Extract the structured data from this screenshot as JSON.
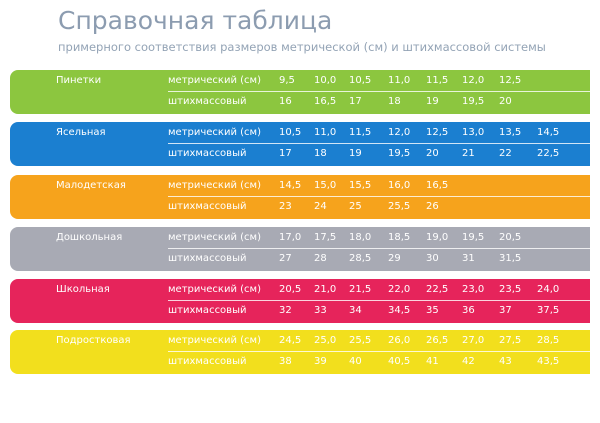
{
  "header": {
    "title": "Справочная таблица",
    "subtitle": "примерного соответствия размеров метрической (см) и штихмассовой системы"
  },
  "table": {
    "groups": [
      {
        "name": "Пинетки",
        "rows": [
          {
            "label": "метрический (см)",
            "values": [
              "9,5",
              "10,0",
              "10,5",
              "11,0",
              "11,5",
              "12,0",
              "12,5"
            ]
          },
          {
            "label": "штихмассовый",
            "values": [
              "16",
              "16,5",
              "17",
              "18",
              "19",
              "19,5",
              "20"
            ]
          }
        ]
      },
      {
        "name": "Ясельная",
        "rows": [
          {
            "label": "метрический (см)",
            "values": [
              "10,5",
              "11,0",
              "11,5",
              "12,0",
              "12,5",
              "13,0",
              "13,5",
              "14,5"
            ]
          },
          {
            "label": "штихмассовый",
            "values": [
              "17",
              "18",
              "19",
              "19,5",
              "20",
              "21",
              "22",
              "22,5"
            ]
          }
        ]
      },
      {
        "name": "Малодетская",
        "rows": [
          {
            "label": "метрический (см)",
            "values": [
              "14,5",
              "15,0",
              "15,5",
              "16,0",
              "16,5"
            ]
          },
          {
            "label": "штихмассовый",
            "values": [
              "23",
              "24",
              "25",
              "25,5",
              "26"
            ]
          }
        ]
      },
      {
        "name": "Дошкольная",
        "rows": [
          {
            "label": "метрический (см)",
            "values": [
              "17,0",
              "17,5",
              "18,0",
              "18,5",
              "19,0",
              "19,5",
              "20,5"
            ]
          },
          {
            "label": "штихмассовый",
            "values": [
              "27",
              "28",
              "28,5",
              "29",
              "30",
              "31",
              "31,5"
            ]
          }
        ]
      },
      {
        "name": "Школьная",
        "rows": [
          {
            "label": "метрический (см)",
            "values": [
              "20,5",
              "21,0",
              "21,5",
              "22,0",
              "22,5",
              "23,0",
              "23,5",
              "24,0"
            ]
          },
          {
            "label": "штихмассовый",
            "values": [
              "32",
              "33",
              "34",
              "34,5",
              "35",
              "36",
              "37",
              "37,5"
            ]
          }
        ]
      },
      {
        "name": "Подростковая",
        "rows": [
          {
            "label": "метрический (см)",
            "values": [
              "24,5",
              "25,0",
              "25,5",
              "26,0",
              "26,5",
              "27,0",
              "27,5",
              "28,5"
            ]
          },
          {
            "label": "штихмассовый",
            "values": [
              "38",
              "39",
              "40",
              "40,5",
              "41",
              "42",
              "43",
              "43,5"
            ]
          }
        ]
      }
    ]
  }
}
